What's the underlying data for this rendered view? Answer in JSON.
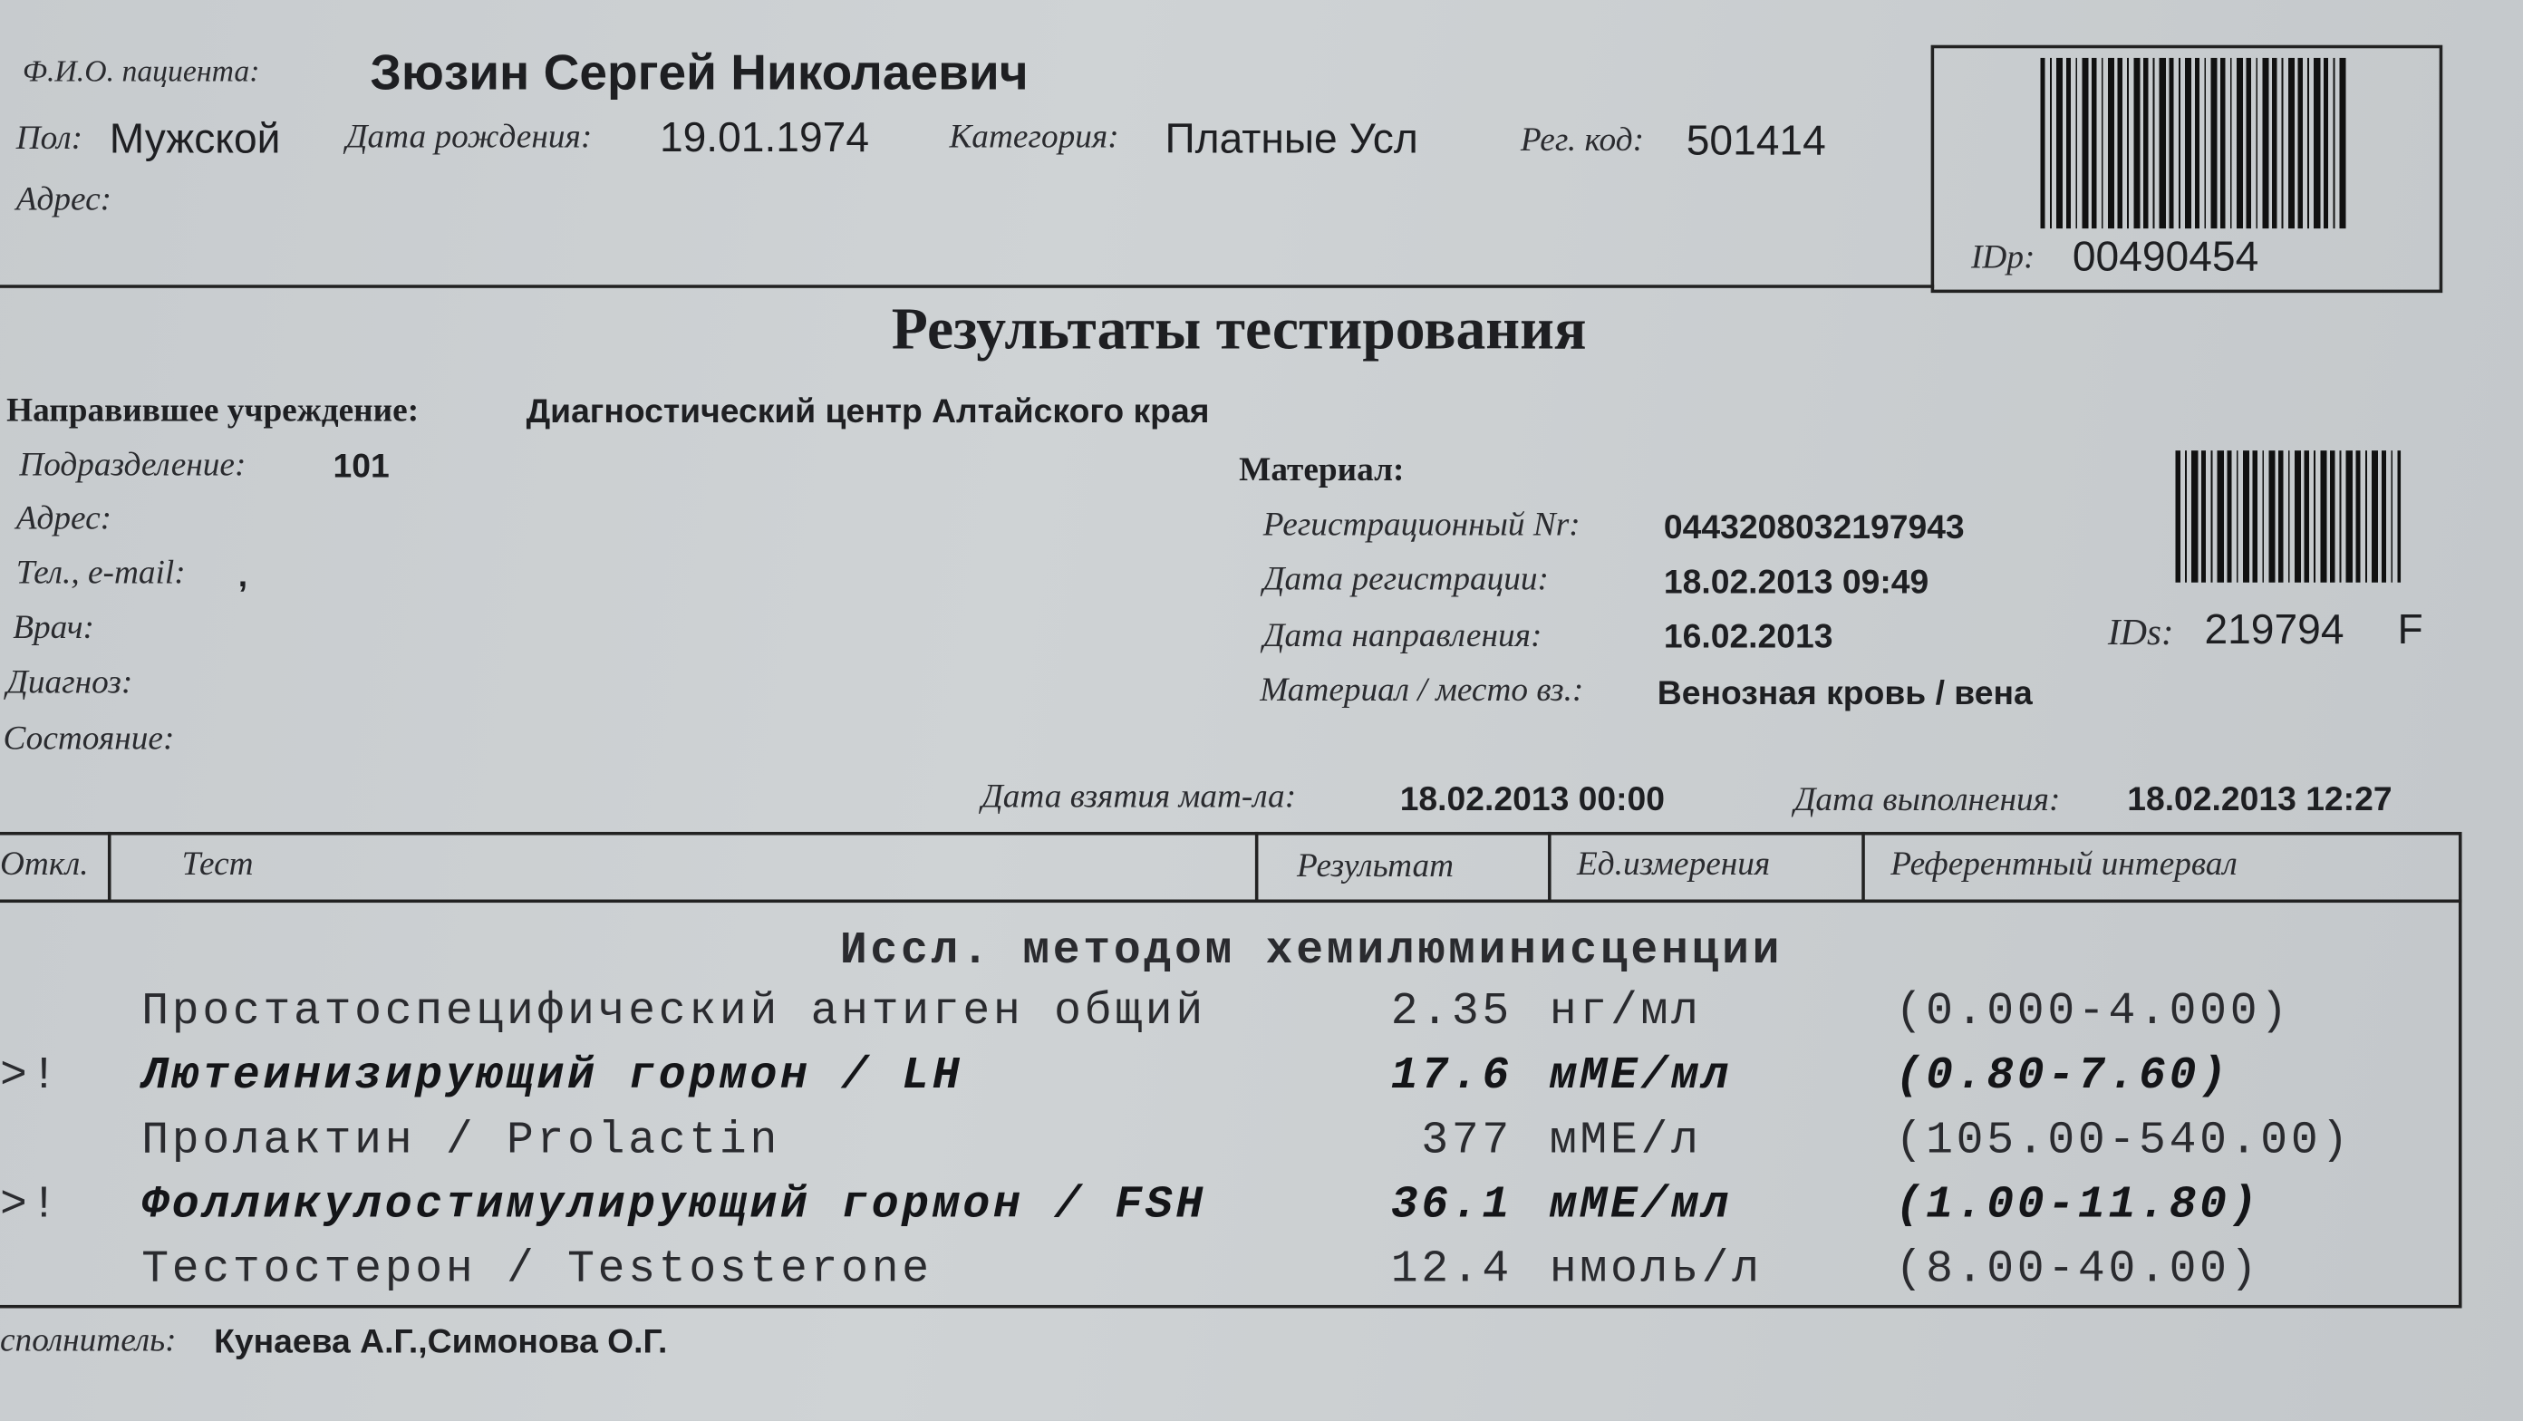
{
  "patient": {
    "name_label": "Ф.И.О. пациента:",
    "name": "Зюзин Сергей Николаевич",
    "sex_label": "Пол:",
    "sex": "Мужской",
    "dob_label": "Дата рождения:",
    "dob": "19.01.1974",
    "category_label": "Категория:",
    "category": "Платные Усл",
    "reg_code_label": "Рег. код:",
    "reg_code": "501414",
    "address_label": "Адрес:"
  },
  "idp": {
    "label": "IDp:",
    "value": "00490454"
  },
  "title": "Результаты тестирования",
  "referral": {
    "label": "Направившее учреждение:",
    "value": "Диагностический центр Алтайского края",
    "department_label": "Подразделение:",
    "department": "101",
    "address_label": "Адрес:",
    "contact_label": "Тел., e-mail:",
    "contact": ",",
    "doctor_label": "Врач:",
    "diagnosis_label": "Диагноз:",
    "condition_label": "Состояние:"
  },
  "material": {
    "label": "Материал:",
    "reg_nr_label": "Регистрационный Nr:",
    "reg_nr": "0443208032197943",
    "reg_date_label": "Дата регистрации:",
    "reg_date": "18.02.2013 09:49",
    "referral_date_label": "Дата направления:",
    "referral_date": "16.02.2013",
    "type_label": "Материал / место вз.:",
    "type": "Венозная кровь / вена"
  },
  "ids": {
    "label": "IDs:",
    "value": "219794",
    "suffix": "F"
  },
  "dates": {
    "taken_label": "Дата взятия мат-ла:",
    "taken": "18.02.2013 00:00",
    "done_label": "Дата выполнения:",
    "done": "18.02.2013 12:27"
  },
  "table": {
    "headers": [
      "Откл.",
      "Тест",
      "Результат",
      "Ед.измерения",
      "Референтный интервал"
    ],
    "group": "Иссл. методом хемилюминисценции",
    "rows": [
      [
        "",
        "Простатоспецифический антиген общий",
        "2.35",
        "нг/мл",
        "(0.000-4.000)"
      ],
      [
        ">!",
        "Лютеинизирующий гормон / LH",
        "17.6",
        "мМЕ/мл",
        "(0.80-7.60)"
      ],
      [
        "",
        "Пролактин / Prolactin",
        "377",
        "мМЕ/л",
        "(105.00-540.00)"
      ],
      [
        ">!",
        "Фолликулостимулирующий гормон / FSH",
        "36.1",
        "мМЕ/мл",
        "(1.00-11.80)"
      ],
      [
        "",
        "Тестостерон / Testosterone",
        "12.4",
        "нмоль/л",
        "(8.00-40.00)"
      ]
    ]
  },
  "footer": {
    "label": "сполнитель:",
    "value": "Кунаева А.Г.,Симонова О.Г."
  }
}
